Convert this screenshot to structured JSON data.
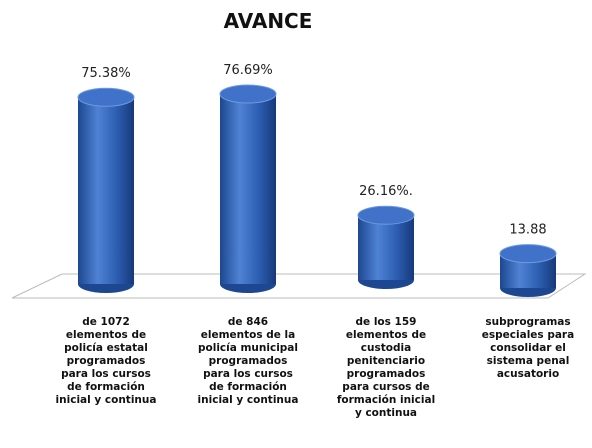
{
  "chart_data": {
    "type": "bar3d",
    "title": "AVANCE",
    "categories": [
      "de 1072\nelementos de\npolicía estatal\nprogramados\npara los cursos\nde formación\ninicial y continua",
      "de 846\nelementos de la\npolicía municipal\nprogramados\npara los cursos\nde formación\ninicial y continua",
      "de los 159\nelementos de\ncustodia\npenitenciario\nprogramados\npara cursos de\nformación inicial\ny continua",
      "subprogramas\nespeciales para\nconsolidar el\nsistema penal\nacusatorio"
    ],
    "values": [
      75.38,
      76.69,
      26.16,
      13.88
    ],
    "value_labels": [
      "75.38%",
      "76.69%",
      "26.16%.",
      "13.88"
    ],
    "color": "#2e5fae"
  }
}
